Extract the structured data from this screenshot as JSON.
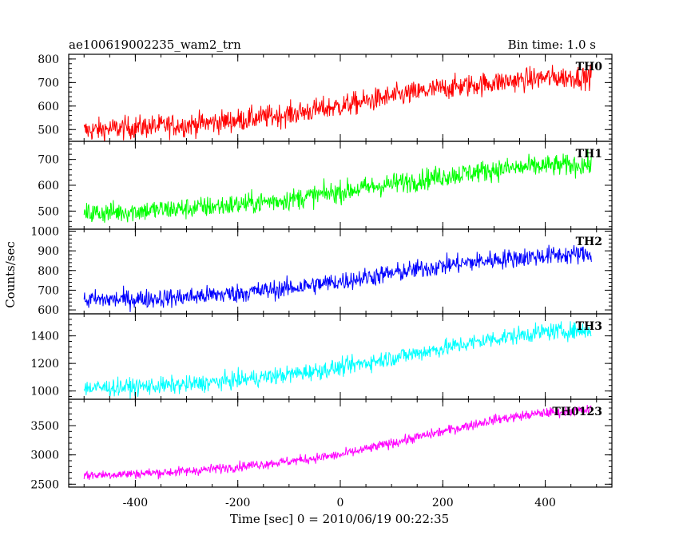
{
  "header": {
    "title": "ae100619002235_wam2_trn",
    "bin_time": "Bin time: 1.0 s"
  },
  "chart_data": {
    "type": "line",
    "title": "ae100619002235_wam2_trn",
    "subtitle": "Bin time: 1.0 s",
    "xlabel": "Time [sec] 0 = 2010/06/19 00:22:35",
    "ylabel": "Counts/sec",
    "xlim": [
      -530,
      530
    ],
    "xticks": [
      -400,
      -200,
      0,
      200,
      400
    ],
    "grid": false,
    "panels": [
      {
        "name": "TH0",
        "color": "#ff0000",
        "ylim": [
          450,
          820
        ],
        "yticks": [
          500,
          600,
          700,
          800
        ],
        "x": [
          -500,
          -400,
          -300,
          -200,
          -100,
          0,
          100,
          200,
          300,
          400,
          490
        ],
        "values": [
          495,
          510,
          520,
          540,
          565,
          600,
          640,
          675,
          700,
          720,
          725
        ],
        "noise": 35
      },
      {
        "name": "TH1",
        "color": "#00ff00",
        "ylim": [
          430,
          770
        ],
        "yticks": [
          500,
          600,
          700
        ],
        "x": [
          -500,
          -400,
          -300,
          -200,
          -100,
          0,
          100,
          200,
          300,
          400,
          490
        ],
        "values": [
          490,
          500,
          510,
          525,
          545,
          575,
          605,
          635,
          660,
          675,
          680
        ],
        "noise": 30
      },
      {
        "name": "TH2",
        "color": "#0000ff",
        "ylim": [
          580,
          1010
        ],
        "yticks": [
          600,
          700,
          800,
          900,
          1000
        ],
        "x": [
          -500,
          -400,
          -300,
          -200,
          -100,
          0,
          100,
          200,
          300,
          400,
          490
        ],
        "values": [
          650,
          655,
          665,
          685,
          710,
          745,
          785,
          825,
          855,
          875,
          885
        ],
        "noise": 35
      },
      {
        "name": "TH3",
        "color": "#00ffff",
        "ylim": [
          940,
          1560
        ],
        "yticks": [
          1000,
          1200,
          1400
        ],
        "x": [
          -500,
          -400,
          -300,
          -200,
          -100,
          0,
          100,
          200,
          300,
          400,
          490
        ],
        "values": [
          1020,
          1030,
          1045,
          1080,
          1120,
          1170,
          1240,
          1310,
          1380,
          1430,
          1440
        ],
        "noise": 45
      },
      {
        "name": "TH0123",
        "color": "#ff00ff",
        "ylim": [
          2450,
          3950
        ],
        "yticks": [
          2500,
          3000,
          3500
        ],
        "x": [
          -500,
          -400,
          -300,
          -200,
          -100,
          0,
          100,
          200,
          300,
          400,
          490
        ],
        "values": [
          2650,
          2680,
          2720,
          2800,
          2890,
          3000,
          3200,
          3400,
          3600,
          3720,
          3770
        ],
        "noise": 60
      }
    ]
  }
}
